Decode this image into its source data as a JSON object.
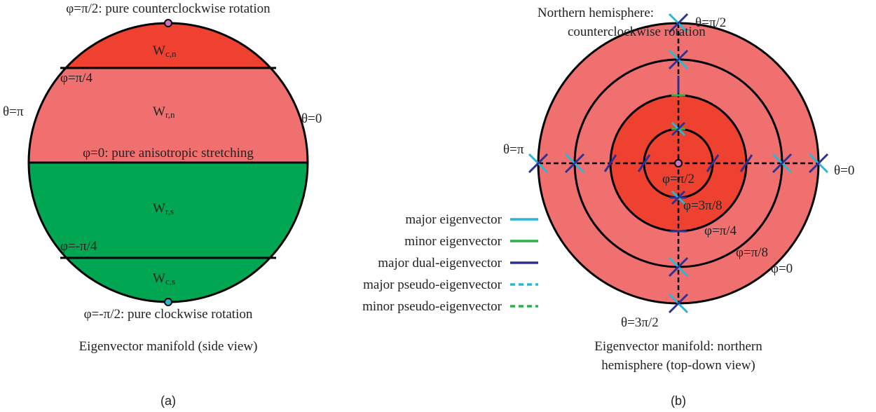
{
  "panel_a": {
    "top_label": "φ=π/2: pure counterclockwise rotation",
    "wcn": {
      "main": "W",
      "sub": "c,n"
    },
    "phi_q": "φ=π/4",
    "theta_pi": "θ=π",
    "theta_0": "θ=0",
    "wrn": {
      "main": "W",
      "sub": "r,n"
    },
    "phi_0": "φ=0: pure anisotropic stretching",
    "wrs": {
      "main": "W",
      "sub": "r,s"
    },
    "phi_mq": "φ=-π/4",
    "wcs": {
      "main": "W",
      "sub": "c,s"
    },
    "bottom_label": "φ=-π/2: pure clockwise rotation",
    "caption": "Eigenvector manifold (side view)",
    "tag": "(a)"
  },
  "panel_b": {
    "title_lines": [
      "Northern hemisphere:",
      "counterclockwise rotation"
    ],
    "theta_half_pi": "θ=π/2",
    "theta_pi": "θ=π",
    "theta_0": "θ=0",
    "theta_3half_pi": "θ=3π/2",
    "phi_labels": [
      "φ=π/2",
      "φ=3π/8",
      "φ=π/4",
      "φ=π/8",
      "φ=0"
    ],
    "legend": [
      "major eigenvector",
      "minor eigenvector",
      "major dual-eigenvector",
      "major pseudo-eigenvector",
      "minor pseudo-eigenvector"
    ],
    "caption_lines": [
      "Eigenvector manifold: northern",
      "hemisphere (top-down view)"
    ],
    "tag": "(b)"
  }
}
